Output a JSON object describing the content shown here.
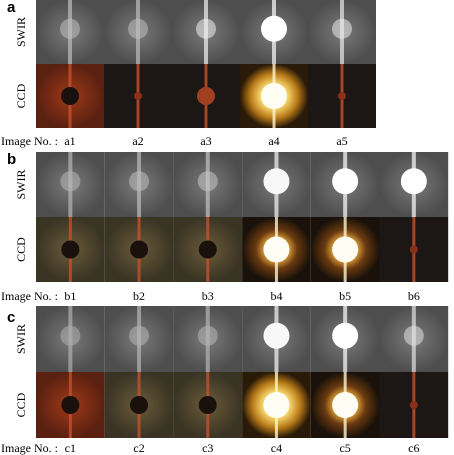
{
  "panels": [
    {
      "label": "a",
      "rows": [
        "SWIR",
        "CCD"
      ],
      "image_no_label": "Image No. :",
      "images": [
        "a1",
        "a2",
        "a3",
        "a4",
        "a5"
      ]
    },
    {
      "label": "b",
      "rows": [
        "SWIR",
        "CCD"
      ],
      "image_no_label": "Image No. :",
      "images": [
        "b1",
        "b2",
        "b3",
        "b4",
        "b5",
        "b6"
      ]
    },
    {
      "label": "c",
      "rows": [
        "SWIR",
        "CCD"
      ],
      "image_no_label": "Image No. :",
      "images": [
        "c1",
        "c2",
        "c3",
        "c4",
        "c5",
        "c6"
      ]
    }
  ]
}
